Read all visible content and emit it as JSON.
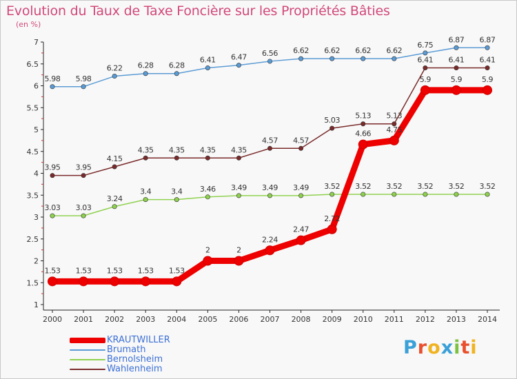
{
  "title": "Evolution du Taux de Taxe Foncière sur les Propriétés Bâties",
  "subtitle": "(en %)",
  "logo": {
    "text": "Proxiti",
    "letters": [
      "P",
      "r",
      "o",
      "x",
      "i",
      "t",
      "i"
    ],
    "colors": [
      "#3aa0d8",
      "#e8502e",
      "#f0b321",
      "#3aa0d8",
      "#7cc242",
      "#e8502e",
      "#f0b321"
    ]
  },
  "chart_data": {
    "type": "line",
    "title": "Evolution du Taux de Taxe Foncière sur les Propriétés Bâties",
    "ylabel": "(en %)",
    "xlabel": "",
    "x": [
      "2000",
      "2001",
      "2002",
      "2003",
      "2004",
      "2005",
      "2006",
      "2007",
      "2008",
      "2009",
      "2010",
      "2011",
      "2012",
      "2013",
      "2014"
    ],
    "ylim": [
      1,
      7
    ],
    "yticks": [
      "1",
      "1.5",
      "2",
      "2.5",
      "3",
      "3.5",
      "4",
      "4.5",
      "5",
      "5.5",
      "6",
      "6.5",
      "7"
    ],
    "grid": false,
    "legend_position": "bottom-left",
    "series": [
      {
        "name": "KRAUTWILLER",
        "color": "#ee0000",
        "emphasis": true,
        "values": [
          1.53,
          1.53,
          1.53,
          1.53,
          1.53,
          2,
          2,
          2.24,
          2.47,
          2.72,
          4.66,
          4.75,
          5.9,
          5.9,
          5.9
        ],
        "labels": [
          "1.53",
          "1.53",
          "1.53",
          "1.53",
          "1.53",
          "2",
          "2",
          "2.24",
          "2.47",
          "2.72",
          "4.66",
          "4.75",
          "5.9",
          "5.9",
          "5.9"
        ]
      },
      {
        "name": "Brumath",
        "color": "#5b9bd5",
        "values": [
          5.98,
          5.98,
          6.22,
          6.28,
          6.28,
          6.41,
          6.47,
          6.56,
          6.62,
          6.62,
          6.62,
          6.62,
          6.75,
          6.87,
          6.87
        ],
        "labels": [
          "5.98",
          "5.98",
          "6.22",
          "6.28",
          "6.28",
          "6.41",
          "6.47",
          "6.56",
          "6.62",
          "6.62",
          "6.62",
          "6.62",
          "6.75",
          "6.87",
          "6.87"
        ]
      },
      {
        "name": "Bernolsheim",
        "color": "#8fd14f",
        "values": [
          3.03,
          3.03,
          3.24,
          3.4,
          3.4,
          3.46,
          3.49,
          3.49,
          3.49,
          3.52,
          3.52,
          3.52,
          3.52,
          3.52,
          3.52
        ],
        "labels": [
          "3.03",
          "3.03",
          "3.24",
          "3.4",
          "3.4",
          "3.46",
          "3.49",
          "3.49",
          "3.49",
          "3.52",
          "3.52",
          "3.52",
          "3.52",
          "3.52",
          "3.52"
        ]
      },
      {
        "name": "Wahlenheim",
        "color": "#7a2a2a",
        "values": [
          3.95,
          3.95,
          4.15,
          4.35,
          4.35,
          4.35,
          4.35,
          4.57,
          4.57,
          5.03,
          5.13,
          5.13,
          6.41,
          6.41,
          6.41
        ],
        "labels": [
          "3.95",
          "3.95",
          "4.15",
          "4.35",
          "4.35",
          "4.35",
          "4.35",
          "4.57",
          "4.57",
          "5.03",
          "5.13",
          "5.13",
          "6.41",
          "6.41",
          "6.41"
        ]
      }
    ]
  }
}
